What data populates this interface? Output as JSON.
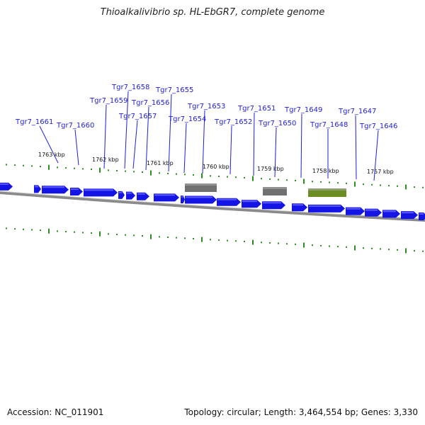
{
  "title": "Thioalkalivibrio sp. HL-EbGR7, complete genome",
  "footer": {
    "accession": "Accession: NC_011901",
    "summary": "Topology: circular; Length: 3,464,554 bp; Genes: 3,330"
  },
  "colors": {
    "cds": "#1414e6",
    "cds_highlight": "#5a5aff",
    "rna_gray": "#707070",
    "rna_green": "#6b8e23",
    "tick": "#2e8b22",
    "label": "#1f1fd6",
    "backbone": "#8a8a8a"
  },
  "kbp_labels": [
    "1763 kbp",
    "1762 kbp",
    "1761 kbp",
    "1760 kbp",
    "1759 kbp",
    "1758 kbp",
    "1757 kbp"
  ],
  "gene_labels": [
    "Tgr7_1661",
    "Tgr7_1660",
    "Tgr7_1659",
    "Tgr7_1658",
    "Tgr7_1657",
    "Tgr7_1656",
    "Tgr7_1655",
    "Tgr7_1654",
    "Tgr7_1653",
    "Tgr7_1652",
    "Tgr7_1651",
    "Tgr7_1650",
    "Tgr7_1649",
    "Tgr7_1648",
    "Tgr7_1647",
    "Tgr7_1646"
  ]
}
